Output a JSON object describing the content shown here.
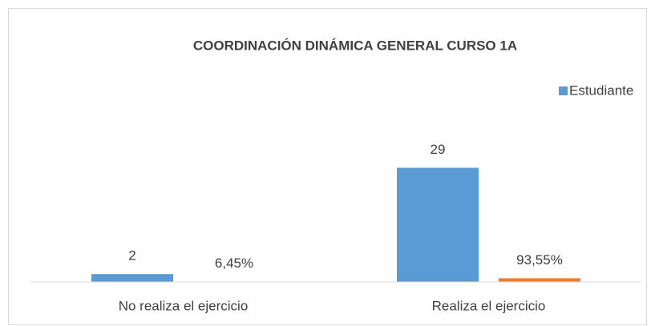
{
  "chart_data": {
    "type": "bar",
    "title": "COORDINACIÓN DINÁMICA GENERAL CURSO 1A",
    "categories": [
      "No realiza el ejercicio",
      "Realiza el ejercicio"
    ],
    "series": [
      {
        "name": "Estudiante",
        "color": "#5b9bd5",
        "values": [
          2,
          29
        ]
      },
      {
        "name": "%",
        "color": "#ed7d31",
        "values": [
          0.0645,
          0.9355
        ],
        "value_labels": [
          "6,45%",
          "93,55%"
        ]
      }
    ],
    "ylim": [
      0,
      35
    ],
    "legend": "top-right"
  }
}
